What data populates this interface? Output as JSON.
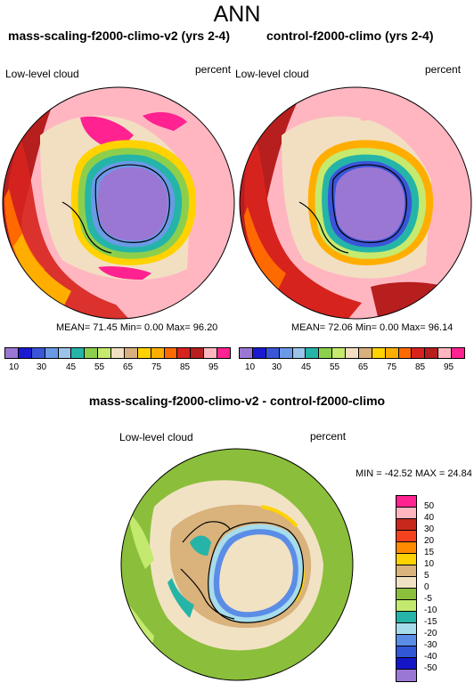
{
  "title": "ANN",
  "panels": [
    {
      "title": "mass-scaling-f2000-climo-v2 (yrs 2-4)",
      "variable": "Low-level cloud",
      "units": "percent",
      "stats": "MEAN=  71.45   Min=   0.00   Max=  96.20"
    },
    {
      "title": "control-f2000-climo (yrs 2-4)",
      "variable": "Low-level cloud",
      "units": "percent",
      "stats": "MEAN=  72.06   Min=   0.00   Max=  96.14"
    }
  ],
  "colorbar_top": {
    "labels": [
      "10",
      "30",
      "45",
      "55",
      "65",
      "75",
      "85",
      "95"
    ],
    "colors": [
      "#9b77d4",
      "#1a1ad0",
      "#3b55d9",
      "#6a9ae6",
      "#9cc4eb",
      "#25b5a8",
      "#8ccf4d",
      "#c5ea6e",
      "#f2dfc2",
      "#d8b07e",
      "#ffd200",
      "#ffae00",
      "#ff6a00",
      "#d7231e",
      "#b71e1e",
      "#ffb6c1",
      "#ff2290"
    ]
  },
  "diff": {
    "title": "mass-scaling-f2000-climo-v2 - control-f2000-climo",
    "variable": "Low-level cloud",
    "units": "percent",
    "stats": "MIN = -42.52 MAX =  24.84",
    "colorbar_labels": [
      "50",
      "40",
      "30",
      "20",
      "15",
      "10",
      "5",
      "0",
      "-5",
      "-10",
      "-15",
      "-20",
      "-30",
      "-40",
      "-50"
    ],
    "colorbar_colors": [
      "#ff2290",
      "#ffb6c1",
      "#c8281c",
      "#f5421e",
      "#ff8c00",
      "#ffd200",
      "#d9b27c",
      "#f2e2c4",
      "#8bbf3b",
      "#c3ea6f",
      "#25b4a7",
      "#a7dcec",
      "#5b8de6",
      "#3157d6",
      "#1515c8",
      "#9b77d4"
    ]
  }
}
